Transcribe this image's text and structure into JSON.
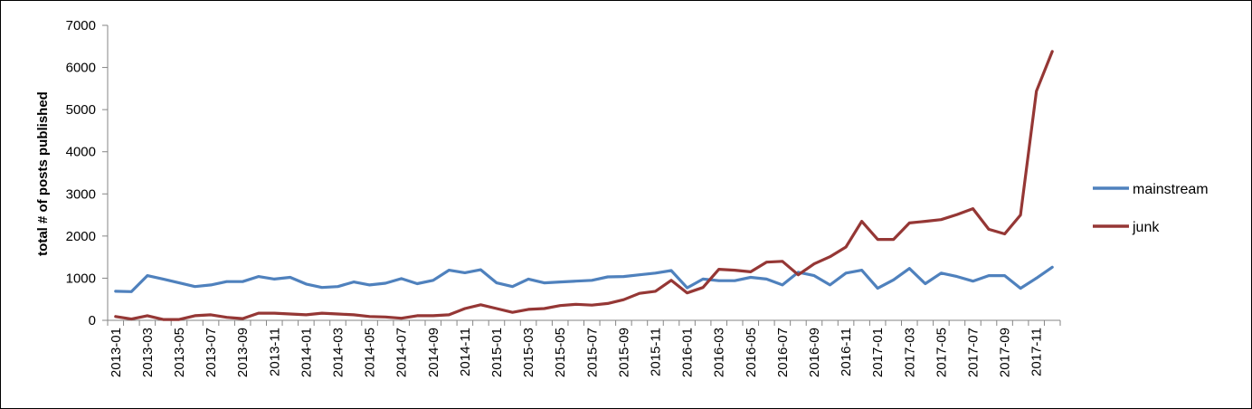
{
  "chart_data": {
    "type": "line",
    "ylabel": "total # of posts published",
    "xlabel": "",
    "ylim": [
      0,
      7000
    ],
    "yticks": [
      "0",
      "1000",
      "2000",
      "3000",
      "4000",
      "5000",
      "6000",
      "7000"
    ],
    "grid": false,
    "legend_position": "right",
    "x": [
      "2013-01",
      "2013-02",
      "2013-03",
      "2013-04",
      "2013-05",
      "2013-06",
      "2013-07",
      "2013-08",
      "2013-09",
      "2013-10",
      "2013-11",
      "2013-12",
      "2014-01",
      "2014-02",
      "2014-03",
      "2014-04",
      "2014-05",
      "2014-06",
      "2014-07",
      "2014-08",
      "2014-09",
      "2014-10",
      "2014-11",
      "2014-12",
      "2015-01",
      "2015-02",
      "2015-03",
      "2015-04",
      "2015-05",
      "2015-06",
      "2015-07",
      "2015-08",
      "2015-09",
      "2015-10",
      "2015-11",
      "2015-12",
      "2016-01",
      "2016-02",
      "2016-03",
      "2016-04",
      "2016-05",
      "2016-06",
      "2016-07",
      "2016-08",
      "2016-09",
      "2016-10",
      "2016-11",
      "2016-12",
      "2017-01",
      "2017-02",
      "2017-03",
      "2017-04",
      "2017-05",
      "2017-06",
      "2017-07",
      "2017-08",
      "2017-09",
      "2017-10",
      "2017-11",
      "2017-12"
    ],
    "xtick_labels": [
      "2013-01",
      "2013-03",
      "2013-05",
      "2013-07",
      "2013-09",
      "2013-11",
      "2014-01",
      "2014-03",
      "2014-05",
      "2014-07",
      "2014-09",
      "2014-11",
      "2015-01",
      "2015-03",
      "2015-05",
      "2015-07",
      "2015-09",
      "2015-11",
      "2016-01",
      "2016-03",
      "2016-05",
      "2016-07",
      "2016-09",
      "2016-11",
      "2017-01",
      "2017-03",
      "2017-05",
      "2017-07",
      "2017-09",
      "2017-11"
    ],
    "series": [
      {
        "name": "mainstream",
        "color": "#4F81BD",
        "values": [
          690,
          680,
          1060,
          980,
          890,
          800,
          840,
          920,
          920,
          1040,
          980,
          1020,
          860,
          780,
          800,
          910,
          840,
          880,
          990,
          870,
          950,
          1190,
          1130,
          1200,
          890,
          800,
          980,
          890,
          910,
          930,
          950,
          1030,
          1040,
          1080,
          1120,
          1180,
          770,
          980,
          940,
          940,
          1020,
          980,
          840,
          1140,
          1060,
          840,
          1120,
          1190,
          760,
          960,
          1230,
          870,
          1120,
          1040,
          930,
          1060,
          1060,
          760,
          1000,
          1260
        ]
      },
      {
        "name": "junk",
        "color": "#953735",
        "values": [
          90,
          30,
          110,
          20,
          20,
          110,
          130,
          70,
          40,
          170,
          170,
          150,
          130,
          170,
          150,
          130,
          90,
          80,
          50,
          110,
          110,
          130,
          280,
          370,
          280,
          190,
          260,
          280,
          350,
          380,
          360,
          400,
          490,
          640,
          690,
          950,
          650,
          780,
          1210,
          1190,
          1150,
          1380,
          1400,
          1080,
          1340,
          1510,
          1740,
          2350,
          1920,
          1920,
          2310,
          2350,
          2390,
          2510,
          2650,
          2160,
          2050,
          2500,
          5440,
          6380
        ]
      }
    ]
  }
}
